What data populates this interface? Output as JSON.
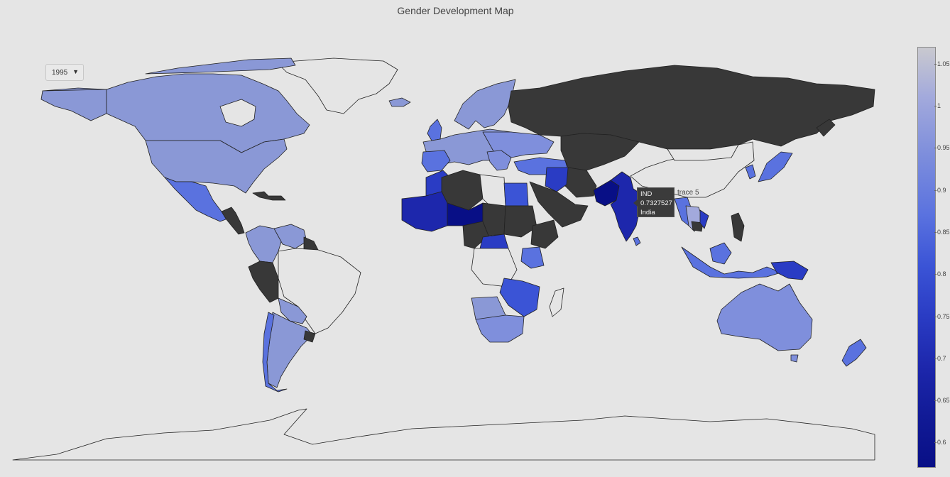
{
  "title": "Gender Development Map",
  "year_selector": {
    "value": "1995"
  },
  "colors": {
    "no_data": "#383838",
    "outline_only": "#e5e5e5",
    "low": "#080f86",
    "mid": "#3b54d6",
    "high": "#8a98d6"
  },
  "colorbar": {
    "ticks": [
      "1.05",
      "1",
      "0.95",
      "0.9",
      "0.85",
      "0.8",
      "0.75",
      "0.7",
      "0.65",
      "0.6"
    ],
    "range": [
      0.57,
      1.07
    ]
  },
  "hover": {
    "code": "IND",
    "value": "0.7327527",
    "name": "India",
    "trace": "trace 5"
  }
}
